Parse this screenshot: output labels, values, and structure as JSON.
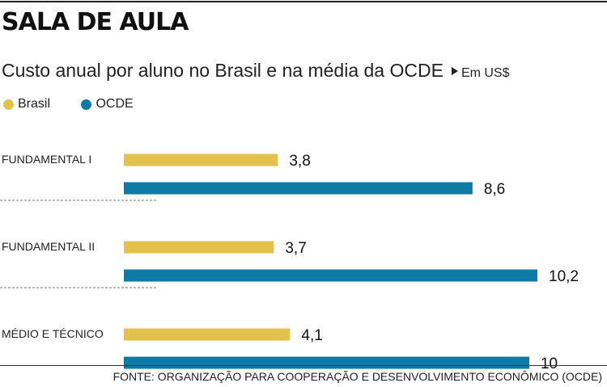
{
  "header": {
    "title": "SALA DE AULA",
    "subtitle": "Custo anual por aluno no Brasil e na média da OCDE",
    "unit": "Em US$"
  },
  "colors": {
    "brasil": "#E2C14D",
    "ocde": "#0E7BA6"
  },
  "chart_data": {
    "type": "bar",
    "orientation": "horizontal",
    "title": "SALA DE AULA",
    "subtitle": "Custo anual por aluno no Brasil e na média da OCDE",
    "unit": "Em US$",
    "categories": [
      "FUNDAMENTAL I",
      "FUNDAMENTAL II",
      "MÉDIO E TÉCNICO"
    ],
    "series": [
      {
        "name": "Brasil",
        "values": [
          3.8,
          3.7,
          4.1
        ],
        "labels": [
          "3,8",
          "3,7",
          "4,1"
        ],
        "color": "#E2C14D"
      },
      {
        "name": "OCDE",
        "values": [
          8.6,
          10.2,
          10
        ],
        "labels": [
          "8,6",
          "10,2",
          "10"
        ],
        "color": "#0E7BA6"
      }
    ],
    "xlim": [
      0,
      10.2
    ],
    "legend": "top-left",
    "grid": false
  },
  "footer": {
    "source": "FONTE: ORGANIZAÇÃO PARA COOPERAÇÃO E DESENVOLVIMENTO ECONÔMICO (OCDE)"
  }
}
